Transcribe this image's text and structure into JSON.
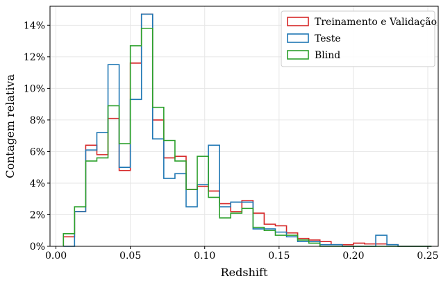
{
  "chart_data": {
    "type": "histogram-step",
    "xlabel": "Redshift",
    "ylabel": "Contagem relativa",
    "xlim": [
      -0.004,
      0.257
    ],
    "ylim": [
      0,
      15.2
    ],
    "grid": true,
    "legend_position": "top-right",
    "x_ticks": [
      0.0,
      0.05,
      0.1,
      0.15,
      0.2,
      0.25
    ],
    "x_tick_labels": [
      "0.00",
      "0.05",
      "0.10",
      "0.15",
      "0.20",
      "0.25"
    ],
    "y_ticks": [
      0,
      2,
      4,
      6,
      8,
      10,
      12,
      14
    ],
    "y_tick_labels": [
      "0%",
      "2%",
      "4%",
      "6%",
      "8%",
      "10%",
      "12%",
      "14%"
    ],
    "bin_edges": [
      0.005,
      0.0125,
      0.02,
      0.0275,
      0.035,
      0.0425,
      0.05,
      0.0575,
      0.065,
      0.0725,
      0.08,
      0.0875,
      0.095,
      0.1025,
      0.11,
      0.1175,
      0.125,
      0.1325,
      0.14,
      0.1475,
      0.155,
      0.1625,
      0.17,
      0.1775,
      0.185,
      0.1925,
      0.2,
      0.2075,
      0.215,
      0.2225,
      0.23,
      0.2375,
      0.245,
      0.2525
    ],
    "series": [
      {
        "name": "Treinamento e Validação",
        "color": "#d62728",
        "values": [
          0.6,
          2.2,
          6.4,
          5.8,
          8.1,
          4.8,
          11.6,
          14.7,
          8.0,
          5.6,
          5.7,
          3.6,
          3.8,
          3.5,
          2.7,
          2.2,
          2.9,
          2.1,
          1.4,
          1.3,
          0.85,
          0.5,
          0.4,
          0.3,
          0.1,
          0.1,
          0.2,
          0.15,
          0.15,
          0.1,
          0.0,
          0.0,
          0.0
        ]
      },
      {
        "name": "Teste",
        "color": "#1f77b4",
        "values": [
          0.0,
          2.2,
          6.1,
          7.2,
          11.5,
          5.0,
          9.3,
          14.7,
          6.8,
          4.3,
          4.6,
          2.5,
          3.9,
          6.4,
          2.5,
          2.8,
          2.8,
          1.1,
          1.1,
          0.9,
          0.6,
          0.3,
          0.3,
          0.1,
          0.1,
          0.0,
          0.0,
          0.0,
          0.7,
          0.1,
          0.0,
          0.0,
          0.0
        ]
      },
      {
        "name": "Blind",
        "color": "#2ca02c",
        "values": [
          0.8,
          2.5,
          5.4,
          5.6,
          8.9,
          6.5,
          12.7,
          13.8,
          8.8,
          6.7,
          5.4,
          3.6,
          5.7,
          3.1,
          1.8,
          2.1,
          2.4,
          1.2,
          1.0,
          0.7,
          0.7,
          0.4,
          0.2,
          0.0,
          0.0,
          0.0,
          0.0,
          0.0,
          0.0,
          0.0,
          0.0,
          0.0,
          0.0
        ]
      }
    ]
  }
}
